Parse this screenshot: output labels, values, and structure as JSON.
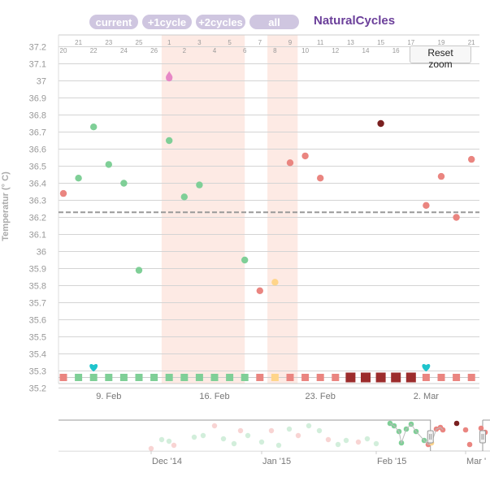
{
  "toolbar": {
    "buttons": [
      {
        "label": "current"
      },
      {
        "label": "+1cycle"
      },
      {
        "label": "+2cycles"
      },
      {
        "label": "all"
      }
    ],
    "brand": "NaturalCycles",
    "reset_zoom": "Reset zoom"
  },
  "colors": {
    "green": "#7fcf97",
    "red": "#ea8580",
    "dark_red": "#9c2c2c",
    "maroon": "#7a2020",
    "yellow": "#ffd58a",
    "pink": "#e788c6",
    "teal": "#1fc4cc",
    "band": "#fdeae4",
    "brand_purple": "#6b3f9a",
    "pill_purple": "#cfc6e0"
  },
  "chart_data": {
    "type": "scatter",
    "ylabel": "Temperatur (° C)",
    "ylim": [
      35.15,
      37.2
    ],
    "y_ticks": [
      "37.2",
      "37.1",
      "37",
      "36.9",
      "36.8",
      "36.7",
      "36.6",
      "36.5",
      "36.4",
      "36.3",
      "36.2",
      "36.1",
      "36",
      "35.9",
      "35.8",
      "35.7",
      "35.6",
      "35.5",
      "35.4",
      "35.3",
      "35.2"
    ],
    "cover_line": 36.23,
    "top_day_labels_upper": [
      "21",
      "23",
      "25",
      "1",
      "3",
      "5",
      "7",
      "9",
      "11",
      "13",
      "15",
      "17",
      "19",
      "21"
    ],
    "top_day_labels_lower": [
      "20",
      "22",
      "24",
      "26",
      "2",
      "4",
      "6",
      "8",
      "10",
      "12",
      "14",
      "16",
      "18",
      "20"
    ],
    "x_labels": [
      "9. Feb",
      "16. Feb",
      "23. Feb",
      "2. Mar"
    ],
    "period_bands": [
      [
        7,
        11.5
      ],
      [
        14,
        15
      ]
    ],
    "temperatures": [
      {
        "day": 0,
        "temp": 36.34,
        "color": "red"
      },
      {
        "day": 1,
        "temp": 36.43,
        "color": "green"
      },
      {
        "day": 2,
        "temp": 36.73,
        "color": "green"
      },
      {
        "day": 3,
        "temp": 36.51,
        "color": "green"
      },
      {
        "day": 4,
        "temp": 36.4,
        "color": "green"
      },
      {
        "day": 5,
        "temp": 35.89,
        "color": "green"
      },
      {
        "day": 7,
        "temp": 37.03,
        "color": "pink",
        "marker": "drop"
      },
      {
        "day": 7,
        "temp": 36.65,
        "color": "green"
      },
      {
        "day": 8,
        "temp": 36.32,
        "color": "green"
      },
      {
        "day": 9,
        "temp": 36.39,
        "color": "green"
      },
      {
        "day": 12,
        "temp": 35.95,
        "color": "green"
      },
      {
        "day": 13,
        "temp": 35.77,
        "color": "red"
      },
      {
        "day": 14,
        "temp": 35.82,
        "color": "yellow"
      },
      {
        "day": 15,
        "temp": 36.52,
        "color": "red"
      },
      {
        "day": 16,
        "temp": 36.56,
        "color": "red"
      },
      {
        "day": 17,
        "temp": 36.43,
        "color": "red"
      },
      {
        "day": 21,
        "temp": 36.75,
        "color": "maroon"
      },
      {
        "day": 24,
        "temp": 36.27,
        "color": "red"
      },
      {
        "day": 25,
        "temp": 36.44,
        "color": "red"
      },
      {
        "day": 26,
        "temp": 36.2,
        "color": "red"
      },
      {
        "day": 27,
        "temp": 36.54,
        "color": "red"
      }
    ],
    "hearts": [
      {
        "day": 2,
        "temp": 35.32
      },
      {
        "day": 24,
        "temp": 35.32
      }
    ],
    "day_squares": [
      "red",
      "green",
      "green",
      "green",
      "green",
      "green",
      "green",
      "green",
      "green",
      "green",
      "green",
      "green",
      "green",
      "red",
      "yellow",
      "red",
      "red",
      "red",
      "red",
      "dark_red",
      "dark_red",
      "dark_red",
      "dark_red",
      "dark_red",
      "red",
      "red",
      "red",
      "red"
    ],
    "navigator": {
      "labels": [
        "Dec '14",
        "Jan '15",
        "Feb '15",
        "Mar '"
      ],
      "selection_range": [
        0.862,
        0.983
      ]
    }
  }
}
